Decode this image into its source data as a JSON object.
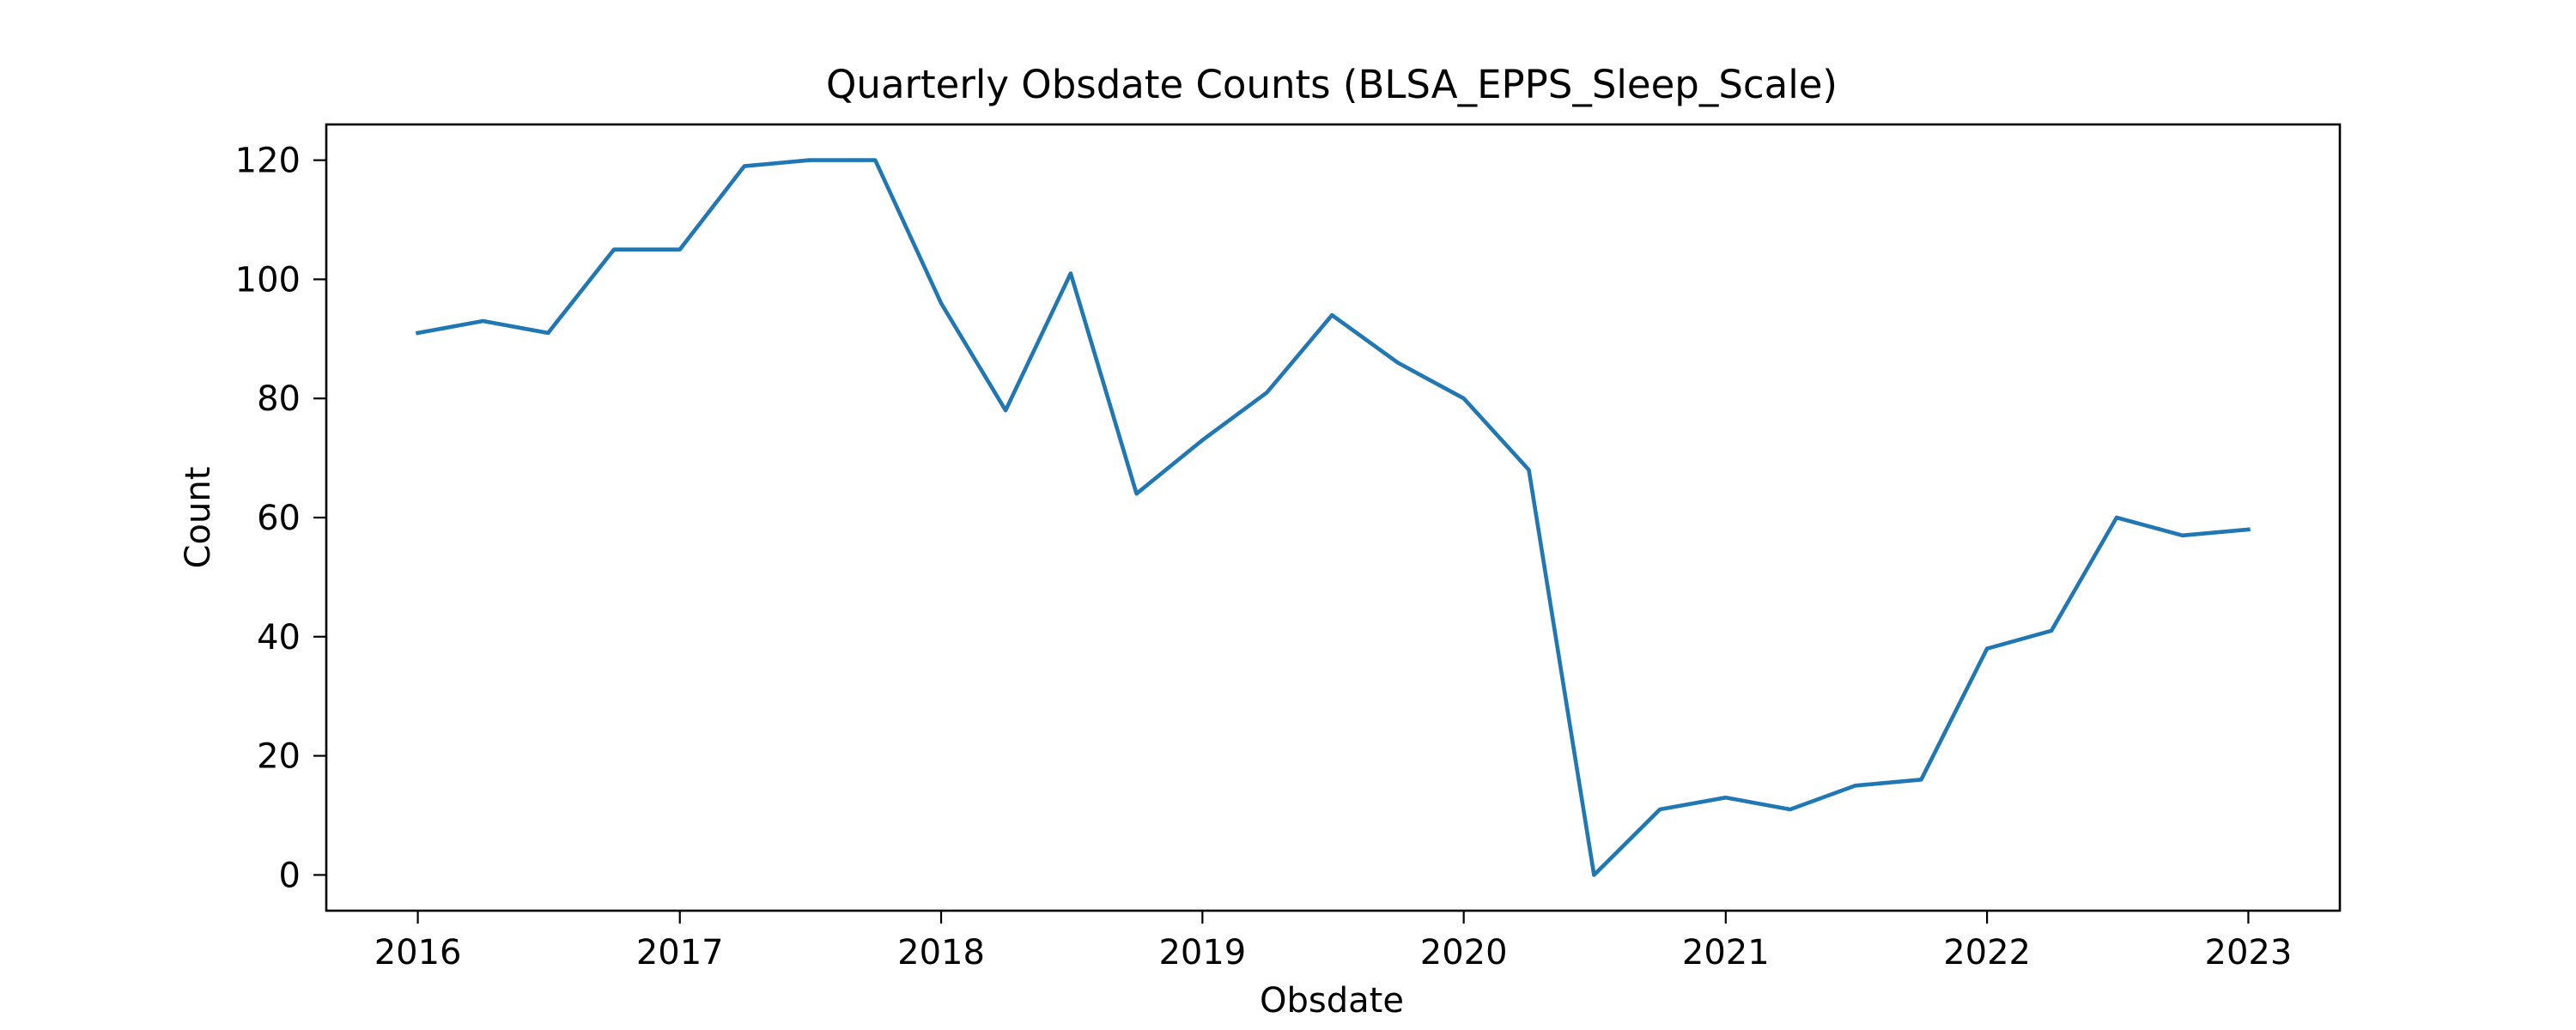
{
  "chart_data": {
    "type": "line",
    "title": "Quarterly Obsdate Counts (BLSA_EPPS_Sleep_Scale)",
    "xlabel": "Obsdate",
    "ylabel": "Count",
    "x": [
      "2016-01-01",
      "2016-04-01",
      "2016-07-01",
      "2016-10-01",
      "2017-01-01",
      "2017-04-01",
      "2017-07-01",
      "2017-10-01",
      "2018-01-01",
      "2018-04-01",
      "2018-07-01",
      "2018-10-01",
      "2019-01-01",
      "2019-04-01",
      "2019-07-01",
      "2019-10-01",
      "2020-01-01",
      "2020-04-01",
      "2020-07-01",
      "2020-10-01",
      "2021-01-01",
      "2021-04-01",
      "2021-07-01",
      "2021-10-01",
      "2022-01-01",
      "2022-04-01",
      "2022-07-01",
      "2022-10-01",
      "2023-01-01"
    ],
    "series": [
      {
        "values": [
          91,
          93,
          91,
          105,
          105,
          119,
          120,
          120,
          96,
          78,
          101,
          64,
          73,
          81,
          94,
          86,
          80,
          68,
          0,
          11,
          13,
          11,
          15,
          16,
          38,
          41,
          60,
          57,
          58
        ],
        "color": "#1f77b4"
      }
    ],
    "xticks": [
      "2016",
      "2017",
      "2018",
      "2019",
      "2020",
      "2021",
      "2022",
      "2023"
    ],
    "yticks": [
      "0",
      "20",
      "40",
      "60",
      "80",
      "100",
      "120"
    ],
    "ylim": [
      -6,
      126
    ],
    "grid": false,
    "legend": "none"
  }
}
